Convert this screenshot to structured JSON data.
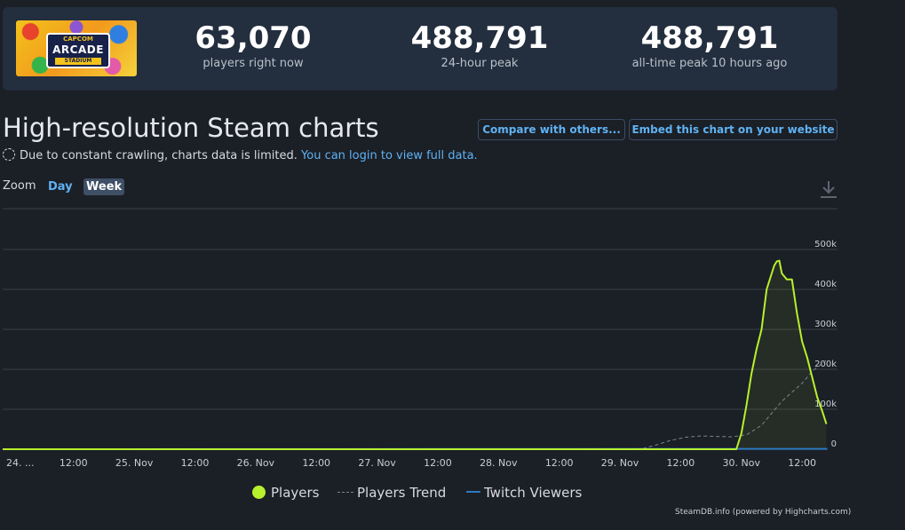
{
  "stats": {
    "logo_lines": [
      "CAPCOM",
      "ARCADE",
      "STADIUM"
    ],
    "items": [
      {
        "value": "63,070",
        "label": "players right now"
      },
      {
        "value": "488,791",
        "label": "24-hour peak"
      },
      {
        "value": "488,791",
        "label": "all-time peak 10 hours ago"
      }
    ]
  },
  "header": {
    "title": "High-resolution Steam charts",
    "compare_button": "Compare with others...",
    "embed_button": "Embed this chart on your website"
  },
  "notice": {
    "text": "Due to constant crawling, charts data is limited.",
    "link": "You can login to view full data."
  },
  "zoom": {
    "label": "Zoom",
    "day": "Day",
    "week": "Week"
  },
  "chart_data": {
    "type": "line",
    "x_ticks": [
      "24. ...",
      "12:00",
      "25. Nov",
      "12:00",
      "26. Nov",
      "12:00",
      "27. Nov",
      "12:00",
      "28. Nov",
      "12:00",
      "29. Nov",
      "12:00",
      "30. Nov",
      "12:00"
    ],
    "y_ticks": [
      "500k",
      "400k",
      "300k",
      "200k",
      "100k",
      "0"
    ],
    "ylim": [
      0,
      500000
    ],
    "x_unit": "hours since start of visible range",
    "xlim": [
      -2,
      163
    ],
    "grid": true,
    "legend_position": "bottom",
    "colors": {
      "players": "#b7f02c",
      "trend": "#7a8593",
      "twitch": "#2b7bbf",
      "grid": "#3a4049",
      "label": "#c8ced6"
    },
    "series": [
      {
        "name": "Players",
        "values": [
          [
            -2,
            0
          ],
          [
            143,
            0
          ],
          [
            144,
            40000
          ],
          [
            145,
            110000
          ],
          [
            146,
            190000
          ],
          [
            147,
            250000
          ],
          [
            148,
            300000
          ],
          [
            149,
            400000
          ],
          [
            150,
            440000
          ],
          [
            150.5,
            460000
          ],
          [
            151,
            470000
          ],
          [
            151.5,
            472000
          ],
          [
            152,
            440000
          ],
          [
            153,
            425000
          ],
          [
            154,
            425000
          ],
          [
            155,
            340000
          ],
          [
            156,
            270000
          ],
          [
            157,
            230000
          ],
          [
            158,
            180000
          ],
          [
            159,
            130000
          ],
          [
            160,
            95000
          ],
          [
            160.8,
            63070
          ]
        ]
      },
      {
        "name": "Players Trend",
        "values": [
          [
            -2,
            0
          ],
          [
            124,
            0
          ],
          [
            127,
            10000
          ],
          [
            130,
            22000
          ],
          [
            133,
            30000
          ],
          [
            136,
            33000
          ],
          [
            139,
            32000
          ],
          [
            142,
            31000
          ],
          [
            145,
            36000
          ],
          [
            148,
            60000
          ],
          [
            152,
            120000
          ],
          [
            156,
            165000
          ],
          [
            158,
            195000
          ],
          [
            161,
            225000
          ]
        ]
      },
      {
        "name": "Twitch Viewers",
        "values": [
          [
            -2,
            0
          ],
          [
            161,
            1000
          ]
        ]
      }
    ]
  },
  "legend": {
    "players": "Players",
    "trend": "Players Trend",
    "twitch": "Twitch Viewers"
  },
  "credits": "SteamDB.info (powered by Highcharts.com)"
}
